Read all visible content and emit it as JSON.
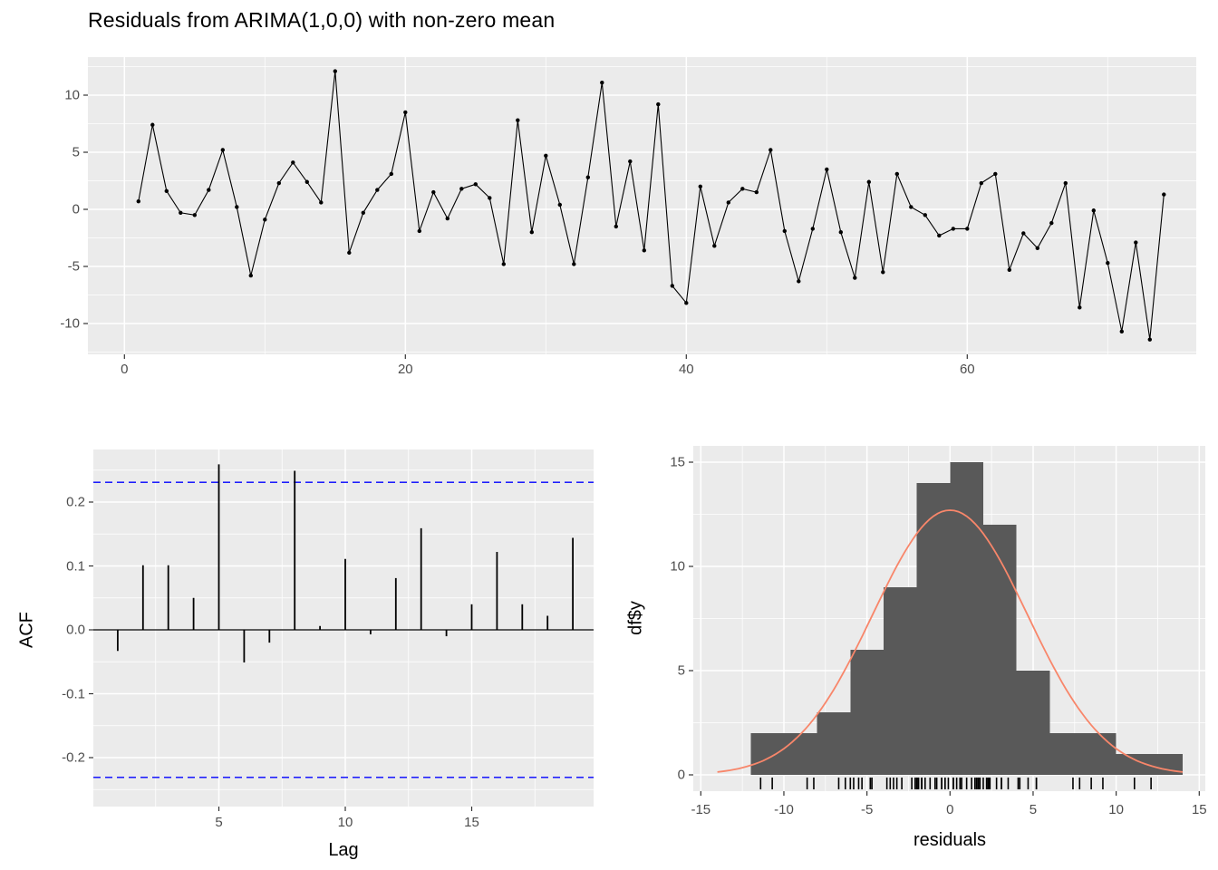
{
  "title": "Residuals from ARIMA(1,0,0) with non-zero mean",
  "colors": {
    "panel_bg": "#EBEBEB",
    "grid_major": "#FFFFFF",
    "grid_minor": "#FFFFFF",
    "axis_text": "#4D4D4D",
    "tick_mark": "#333333",
    "title_text": "#000000",
    "series_line": "#000000",
    "series_point": "#000000",
    "acf_bar": "#000000",
    "acf_zero_line": "#000000",
    "confidence_line": "#0000FF",
    "hist_fill": "#595959",
    "density_curve": "#F8866A",
    "rug_mark": "#000000"
  },
  "chart_data": [
    {
      "type": "line",
      "name": "residuals-time-series",
      "title": "Residuals from ARIMA(1,0,0) with non-zero mean",
      "xlabel": "",
      "ylabel": "",
      "x_start": 1,
      "x_step": 1,
      "values": [
        0.7,
        7.4,
        1.6,
        -0.3,
        -0.5,
        1.7,
        5.2,
        0.2,
        -5.8,
        -0.9,
        2.3,
        4.1,
        2.4,
        0.6,
        12.1,
        -3.8,
        -0.3,
        1.7,
        3.1,
        8.5,
        -1.9,
        1.5,
        -0.8,
        1.8,
        2.2,
        1.0,
        -4.8,
        7.8,
        -2.0,
        4.7,
        0.4,
        -4.8,
        2.8,
        11.1,
        -1.5,
        4.2,
        -3.6,
        9.2,
        -6.7,
        -8.2,
        2.0,
        -3.2,
        0.6,
        1.8,
        1.5,
        5.2,
        -1.9,
        -6.3,
        -1.7,
        3.5,
        -2.0,
        -6.0,
        2.4,
        -5.5,
        3.1,
        0.2,
        -0.5,
        -2.3,
        -1.7,
        -1.7,
        2.3,
        3.1,
        -5.3,
        -2.1,
        -3.4,
        -1.2,
        2.3,
        -8.6,
        -0.1,
        -4.7,
        -10.7,
        -2.9,
        -11.4,
        1.3
      ],
      "marker": "point",
      "grid": true,
      "xlim": [
        -2.6,
        76.3
      ],
      "ylim": [
        -12.6,
        13.3
      ],
      "x_ticks": [
        0,
        20,
        40,
        60
      ],
      "x_tick_labels": [
        "0",
        "20",
        "40",
        "60"
      ],
      "x_minor": [
        10,
        30,
        50,
        70
      ],
      "y_ticks": [
        10,
        5,
        0,
        -5,
        -10
      ],
      "y_tick_labels": [
        "10",
        "5",
        "0",
        "-5",
        "-10"
      ],
      "y_minor": [
        12.5,
        7.5,
        2.5,
        -2.5,
        -7.5,
        -12.5
      ]
    },
    {
      "type": "bar",
      "name": "acf-plot",
      "xlabel": "Lag",
      "ylabel": "ACF",
      "lags": [
        1,
        2,
        3,
        4,
        5,
        6,
        7,
        8,
        9,
        10,
        11,
        12,
        13,
        14,
        15,
        16,
        17,
        18,
        19
      ],
      "values": [
        -0.033,
        0.101,
        0.101,
        0.05,
        0.259,
        -0.051,
        -0.02,
        0.249,
        0.006,
        0.111,
        -0.007,
        0.081,
        0.159,
        -0.01,
        0.04,
        0.122,
        0.04,
        0.022,
        0.144
      ],
      "confidence_level": 0.231,
      "confidence_style": "dashed",
      "grid": true,
      "ylim": [
        -0.282,
        0.282
      ],
      "x_ticks": [
        5,
        10,
        15
      ],
      "x_tick_labels": [
        "5",
        "10",
        "15"
      ],
      "x_minor": [
        2.5,
        7.5,
        12.5,
        17.5
      ],
      "y_ticks": [
        0.2,
        0.1,
        0.0,
        -0.1,
        -0.2
      ],
      "y_tick_labels": [
        "0.2",
        "0.1",
        "0.0",
        "-0.1",
        "-0.2"
      ],
      "y_minor": [
        0.25,
        0.15,
        0.05,
        -0.05,
        -0.15,
        -0.25
      ]
    },
    {
      "type": "histogram",
      "name": "residuals-histogram",
      "xlabel": "residuals",
      "ylabel": "df$y",
      "bin_start": -12,
      "bin_width": 2,
      "counts": [
        2,
        2,
        3,
        6,
        9,
        14,
        15,
        12,
        5,
        2,
        2,
        1,
        1
      ],
      "normal_curve": {
        "mean": 0,
        "sd": 4.65,
        "scale": 148,
        "x_from": -14,
        "x_to": 14
      },
      "rug_values_source": "residuals series values",
      "grid": true,
      "xlim": [
        -15.45,
        15.45
      ],
      "ylim": [
        -0.78,
        15.78
      ],
      "x_ticks": [
        -15,
        -10,
        -5,
        0,
        5,
        10,
        15
      ],
      "x_tick_labels": [
        "-15",
        "-10",
        "-5",
        "0",
        "5",
        "10",
        "15"
      ],
      "x_minor": [
        -12.5,
        -7.5,
        -2.5,
        2.5,
        7.5,
        12.5
      ],
      "y_ticks": [
        0,
        5,
        10,
        15
      ],
      "y_tick_labels": [
        "0",
        "5",
        "10",
        "15"
      ],
      "y_minor": [
        2.5,
        7.5,
        12.5
      ]
    }
  ]
}
